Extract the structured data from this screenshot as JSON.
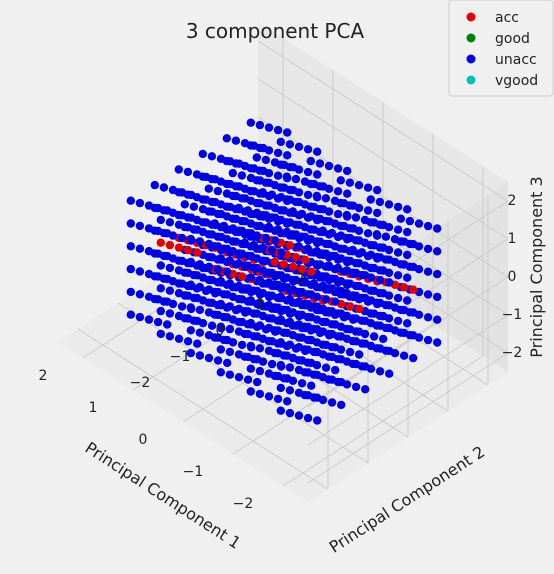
{
  "colors": {
    "background": "#f0f0f0",
    "pane_left": "#e7e7e7",
    "pane_right": "#e2e2e2",
    "floor": "#ebebeb",
    "grid": "#cbcbcb",
    "acc": "#e00000",
    "good": "#008000",
    "unacc": "#0000e0",
    "vgood": "#00bfbf"
  },
  "chart_data": {
    "type": "scatter",
    "title": "3 component PCA",
    "axes": {
      "x": {
        "label": "Principal Component 1",
        "ticks": [
          "2",
          "1",
          "0",
          "−1",
          "−2"
        ]
      },
      "y": {
        "label": "Principal Component 2",
        "ticks": [
          "−2",
          "−1",
          "0",
          "1",
          "2"
        ]
      },
      "z": {
        "label": "Principal Component 3",
        "ticks": [
          "2",
          "1",
          "0",
          "−1",
          "−2"
        ]
      },
      "xlim": [
        -2.5,
        2.5
      ],
      "ylim": [
        -2.5,
        2.5
      ],
      "zlim": [
        -2.5,
        2.5
      ]
    },
    "grid": true,
    "legend": {
      "placement": "top-right",
      "entries": [
        "acc",
        "good",
        "unacc",
        "vgood"
      ]
    },
    "lattice": {
      "x_values": [
        -1.6,
        -1.0,
        -0.4,
        0.2,
        0.8,
        1.4
      ],
      "y_values": [
        -1.6,
        -1.0,
        -0.4,
        0.2,
        0.8,
        1.4
      ],
      "z_values": [
        -1.6,
        -1.0,
        -0.4,
        0.2,
        0.8,
        1.4
      ],
      "offset_steps": [
        -0.26,
        -0.13,
        0.0,
        0.13,
        0.26
      ]
    },
    "series": [
      {
        "name": "acc",
        "color": "#e00000",
        "points": [
          [
            -0.4,
            -0.4,
            0.8
          ],
          [
            0.2,
            -1.0,
            0.2
          ],
          [
            -1.0,
            0.2,
            -0.4
          ],
          [
            0.8,
            0.2,
            -1.0
          ],
          [
            0.2,
            0.8,
            -1.6
          ],
          [
            -0.4,
            1.4,
            -1.0
          ],
          [
            1.4,
            -0.4,
            -0.4
          ],
          [
            -1.0,
            -1.0,
            1.4
          ],
          [
            0.8,
            -1.6,
            0.8
          ],
          [
            0.2,
            0.2,
            0.2
          ],
          [
            -1.6,
            0.8,
            0.2
          ],
          [
            1.4,
            0.8,
            -1.6
          ]
        ]
      },
      {
        "name": "good",
        "points": []
      },
      {
        "name": "unacc",
        "color": "#0000e0",
        "points": []
      },
      {
        "name": "vgood",
        "points": []
      }
    ]
  }
}
